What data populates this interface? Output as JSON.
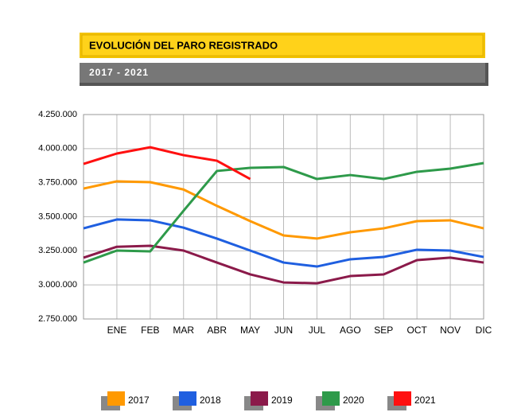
{
  "chart_data": {
    "type": "line",
    "title": "EVOLUCIÓN DEL PARO REGISTRADO",
    "subtitle": "2017 - 2021",
    "categories": [
      null,
      "ENE",
      "FEB",
      "MAR",
      "ABR",
      "MAY",
      "JUN",
      "JUL",
      "AGO",
      "SEP",
      "OCT",
      "NOV",
      "DIC"
    ],
    "series": [
      {
        "name": "2017",
        "color": "#ff9900",
        "values": [
          3707000,
          3760000,
          3754000,
          3700000,
          3580000,
          3468000,
          3363000,
          3340000,
          3386000,
          3415000,
          3468000,
          3474000,
          3415000
        ]
      },
      {
        "name": "2018",
        "color": "#1f5fe0",
        "values": [
          3415000,
          3480000,
          3474000,
          3420000,
          3340000,
          3252000,
          3164000,
          3135000,
          3188000,
          3205000,
          3258000,
          3252000,
          3205000
        ]
      },
      {
        "name": "2019",
        "color": "#8b1a4a",
        "values": [
          3200000,
          3280000,
          3287000,
          3252000,
          3164000,
          3077000,
          3018000,
          3012000,
          3065000,
          3077000,
          3182000,
          3200000,
          3164000
        ]
      },
      {
        "name": "2020",
        "color": "#2e9a4a",
        "values": [
          3164000,
          3252000,
          3246000,
          3544000,
          3836000,
          3859000,
          3865000,
          3777000,
          3806000,
          3777000,
          3830000,
          3853000,
          3894000
        ]
      },
      {
        "name": "2021",
        "color": "#ff1010",
        "values": [
          3888000,
          3964000,
          4010000,
          3952000,
          3911000,
          3777000,
          null,
          null,
          null,
          null,
          null,
          null,
          null
        ]
      }
    ],
    "ylim": [
      2750000,
      4250000
    ],
    "yticks": [
      {
        "value": 2750000,
        "label": "2.750.000"
      },
      {
        "value": 3000000,
        "label": "3.000.000"
      },
      {
        "value": 3250000,
        "label": "3.250.000"
      },
      {
        "value": 3500000,
        "label": "3.500.000"
      },
      {
        "value": 3750000,
        "label": "3.750.000"
      },
      {
        "value": 4000000,
        "label": "4.000.000"
      },
      {
        "value": 4250000,
        "label": "4.250.000"
      }
    ],
    "grid": true
  }
}
